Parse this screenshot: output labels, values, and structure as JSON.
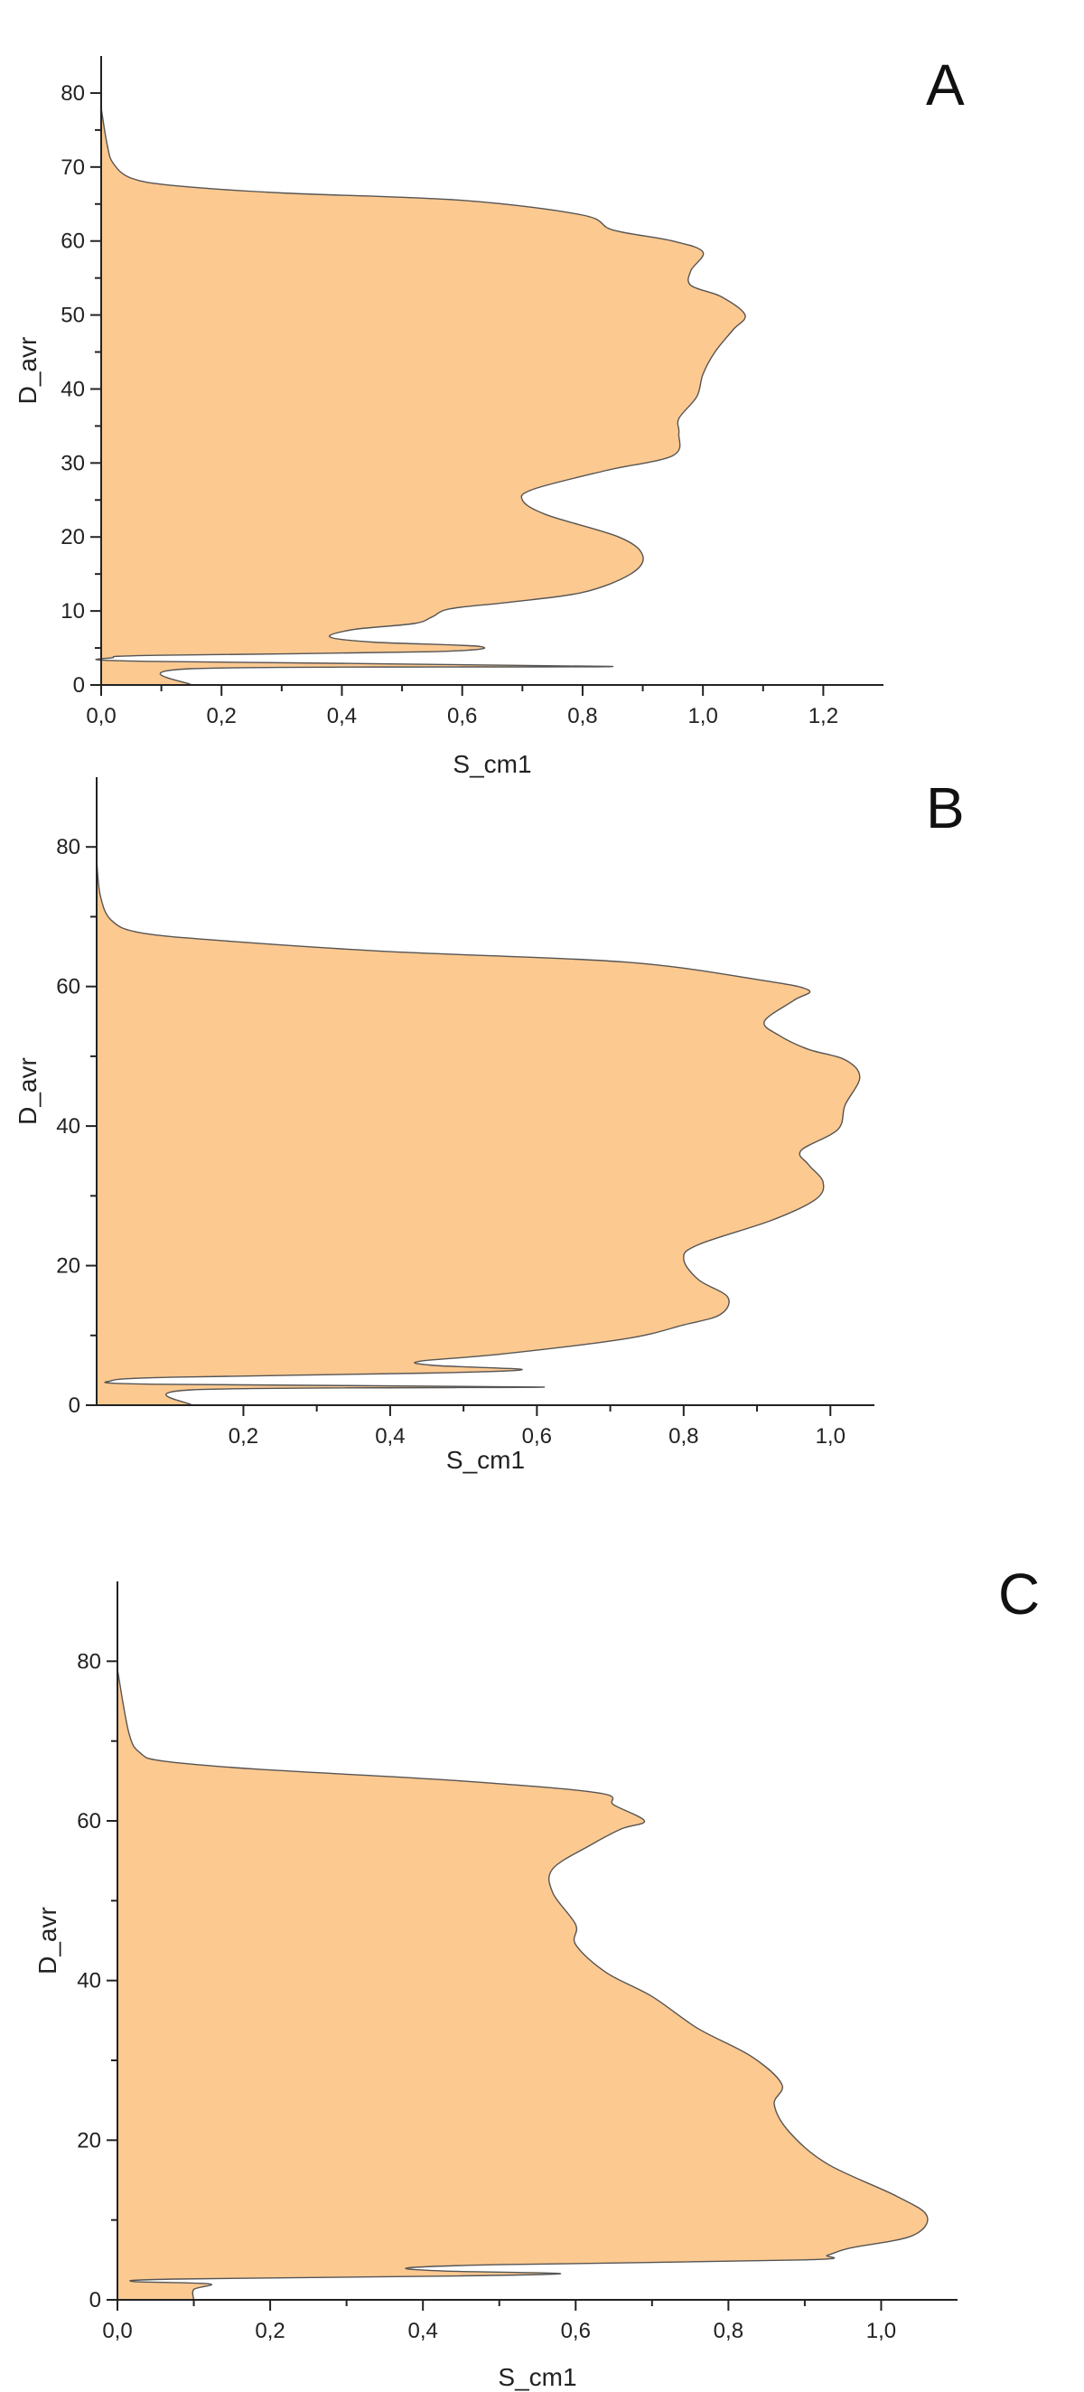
{
  "colors": {
    "fill": "#FCC991",
    "stroke": "#555555",
    "axis": "#222222"
  },
  "chart_data": [
    {
      "type": "area",
      "panel_label": "A",
      "orientation": "horizontal-profile",
      "xlabel": "S_cm1",
      "ylabel": "D_avr",
      "xlim": [
        0,
        1.3
      ],
      "ylim": [
        0,
        85
      ],
      "x_ticks": [
        0,
        0.2,
        0.4,
        0.6,
        0.8,
        1.0,
        1.2
      ],
      "x_tick_labels": [
        "0,0",
        "0,2",
        "0,4",
        "0,6",
        "0,8",
        "1,0",
        "1,2"
      ],
      "y_ticks": [
        0,
        10,
        20,
        30,
        40,
        50,
        60,
        70,
        80
      ],
      "y_tick_labels": [
        "0",
        "10",
        "20",
        "30",
        "40",
        "50",
        "60",
        "70",
        "80"
      ],
      "grid": false,
      "profile": [
        [
          0.15,
          0
        ],
        [
          0.15,
          2.2
        ],
        [
          0.85,
          2.5
        ],
        [
          0.07,
          3.2
        ],
        [
          0.02,
          3.7
        ],
        [
          0.09,
          4.0
        ],
        [
          0.55,
          4.5
        ],
        [
          0.63,
          5.2
        ],
        [
          0.45,
          5.8
        ],
        [
          0.38,
          6.5
        ],
        [
          0.42,
          7.5
        ],
        [
          0.52,
          8.3
        ],
        [
          0.55,
          9.2
        ],
        [
          0.58,
          10.3
        ],
        [
          0.68,
          11.2
        ],
        [
          0.8,
          12.5
        ],
        [
          0.88,
          15
        ],
        [
          0.9,
          17.5
        ],
        [
          0.86,
          20
        ],
        [
          0.74,
          23
        ],
        [
          0.7,
          25
        ],
        [
          0.72,
          26.5
        ],
        [
          0.84,
          29
        ],
        [
          0.95,
          31
        ],
        [
          0.96,
          34
        ],
        [
          0.96,
          36
        ],
        [
          0.99,
          39
        ],
        [
          1.0,
          42
        ],
        [
          1.02,
          45
        ],
        [
          1.05,
          48
        ],
        [
          1.07,
          50
        ],
        [
          1.03,
          52.5
        ],
        [
          0.98,
          54
        ],
        [
          0.98,
          56
        ],
        [
          1.0,
          58.5
        ],
        [
          0.95,
          60
        ],
        [
          0.85,
          61.5
        ],
        [
          0.8,
          63.5
        ],
        [
          0.6,
          65.5
        ],
        [
          0.3,
          66.5
        ],
        [
          0.12,
          67.5
        ],
        [
          0.05,
          68.5
        ],
        [
          0.02,
          70.5
        ],
        [
          0.01,
          73
        ],
        [
          0,
          78
        ]
      ]
    },
    {
      "type": "area",
      "panel_label": "B",
      "orientation": "horizontal-profile",
      "xlabel": "S_cm1",
      "ylabel": "D_avr",
      "xlim": [
        0,
        1.06
      ],
      "ylim": [
        0,
        90
      ],
      "x_ticks": [
        0.2,
        0.4,
        0.6,
        0.8,
        1.0
      ],
      "x_tick_labels": [
        "0,2",
        "0,4",
        "0,6",
        "0,8",
        "1,0"
      ],
      "y_ticks": [
        0,
        20,
        40,
        60,
        80
      ],
      "y_tick_labels": [
        "0",
        "20",
        "40",
        "60",
        "80"
      ],
      "grid": false,
      "profile": [
        [
          0.13,
          0
        ],
        [
          0.13,
          2.2
        ],
        [
          0.61,
          2.6
        ],
        [
          0.08,
          3.0
        ],
        [
          0.02,
          3.5
        ],
        [
          0.1,
          4.0
        ],
        [
          0.45,
          4.6
        ],
        [
          0.58,
          5.1
        ],
        [
          0.46,
          5.7
        ],
        [
          0.44,
          6.3
        ],
        [
          0.55,
          7.3
        ],
        [
          0.72,
          9.5
        ],
        [
          0.8,
          11.5
        ],
        [
          0.85,
          13
        ],
        [
          0.86,
          15.5
        ],
        [
          0.82,
          18
        ],
        [
          0.8,
          21
        ],
        [
          0.82,
          23
        ],
        [
          0.92,
          26.5
        ],
        [
          0.98,
          29.5
        ],
        [
          0.99,
          32
        ],
        [
          0.97,
          34.5
        ],
        [
          0.96,
          36.5
        ],
        [
          1.01,
          39.5
        ],
        [
          1.02,
          43
        ],
        [
          1.04,
          47
        ],
        [
          1.02,
          49.5
        ],
        [
          0.97,
          51
        ],
        [
          0.93,
          53
        ],
        [
          0.91,
          55
        ],
        [
          0.95,
          58
        ],
        [
          0.97,
          59.5
        ],
        [
          0.9,
          61
        ],
        [
          0.72,
          63.5
        ],
        [
          0.4,
          65
        ],
        [
          0.18,
          66.5
        ],
        [
          0.06,
          67.7
        ],
        [
          0.02,
          69.5
        ],
        [
          0.005,
          73
        ],
        [
          0,
          78
        ]
      ]
    },
    {
      "type": "area",
      "panel_label": "C",
      "orientation": "horizontal-profile",
      "xlabel": "S_cm1",
      "ylabel": "D_avr",
      "xlim": [
        0,
        1.1
      ],
      "ylim": [
        0,
        90
      ],
      "x_ticks": [
        0,
        0.2,
        0.4,
        0.6,
        0.8,
        1.0
      ],
      "x_tick_labels": [
        "0,0",
        "0,2",
        "0,4",
        "0,6",
        "0,8",
        "1,0"
      ],
      "y_ticks": [
        0,
        20,
        40,
        60,
        80
      ],
      "y_tick_labels": [
        "0",
        "20",
        "40",
        "60",
        "80"
      ],
      "grid": false,
      "profile": [
        [
          0.1,
          0
        ],
        [
          0.1,
          1.3
        ],
        [
          0.12,
          2.0
        ],
        [
          0.02,
          2.3
        ],
        [
          0.08,
          2.6
        ],
        [
          0.45,
          3.0
        ],
        [
          0.58,
          3.3
        ],
        [
          0.43,
          3.6
        ],
        [
          0.38,
          4.0
        ],
        [
          0.5,
          4.4
        ],
        [
          0.9,
          5.0
        ],
        [
          0.93,
          5.6
        ],
        [
          0.96,
          6.5
        ],
        [
          1.04,
          8
        ],
        [
          1.06,
          10.5
        ],
        [
          1.02,
          13
        ],
        [
          0.93,
          17
        ],
        [
          0.88,
          21
        ],
        [
          0.86,
          24.5
        ],
        [
          0.87,
          27
        ],
        [
          0.83,
          30.5
        ],
        [
          0.76,
          34
        ],
        [
          0.7,
          38
        ],
        [
          0.64,
          41
        ],
        [
          0.6,
          44.5
        ],
        [
          0.6,
          47
        ],
        [
          0.57,
          51
        ],
        [
          0.57,
          54
        ],
        [
          0.62,
          57
        ],
        [
          0.66,
          59
        ],
        [
          0.69,
          60
        ],
        [
          0.65,
          62
        ],
        [
          0.63,
          63.5
        ],
        [
          0.45,
          65
        ],
        [
          0.18,
          66.5
        ],
        [
          0.06,
          67.5
        ],
        [
          0.03,
          68.5
        ],
        [
          0.015,
          71
        ],
        [
          0,
          79
        ]
      ]
    }
  ]
}
